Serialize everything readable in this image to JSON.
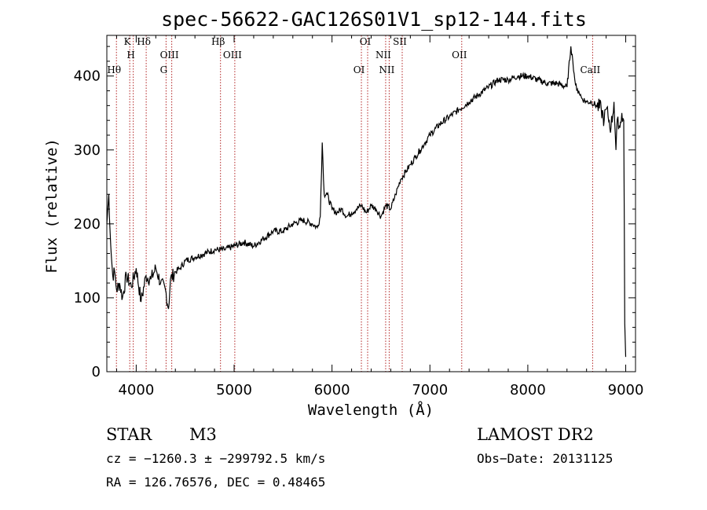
{
  "chart_data": {
    "type": "line",
    "title": "spec-56622-GAC126S01V1_sp12-144.fits",
    "xlabel": "Wavelength (Å)",
    "ylabel": "Flux (relative)",
    "xlim": [
      3700,
      9100
    ],
    "ylim": [
      0,
      455
    ],
    "xticks": [
      4000,
      5000,
      6000,
      7000,
      8000,
      9000
    ],
    "yticks": [
      0,
      100,
      200,
      300,
      400
    ],
    "grid": false,
    "series": [
      {
        "x": [
          3700,
          3720,
          3740,
          3760,
          3780,
          3800,
          3830,
          3860,
          3900,
          3950,
          4000,
          4050,
          4100,
          4150,
          4200,
          4250,
          4300,
          4330,
          4350,
          4400,
          4450,
          4500,
          4600,
          4700,
          4800,
          4900,
          5000,
          5100,
          5200,
          5300,
          5400,
          5500,
          5600,
          5700,
          5800,
          5850,
          5880,
          5900,
          5920,
          5950,
          6000,
          6050,
          6100,
          6150,
          6200,
          6250,
          6300,
          6350,
          6400,
          6450,
          6500,
          6550,
          6600,
          6650,
          6700,
          6750,
          6800,
          6850,
          6900,
          6950,
          7000,
          7100,
          7200,
          7300,
          7400,
          7500,
          7600,
          7700,
          7800,
          7900,
          8000,
          8100,
          8200,
          8300,
          8400,
          8440,
          8460,
          8480,
          8500,
          8520,
          8550,
          8600,
          8650,
          8700,
          8750,
          8780,
          8800,
          8820,
          8850,
          8880,
          8900,
          8920,
          8940,
          8960,
          8980,
          8990,
          9000
        ],
        "values": [
          200,
          240,
          170,
          130,
          135,
          110,
          120,
          100,
          130,
          115,
          140,
          95,
          130,
          125,
          140,
          120,
          110,
          85,
          125,
          135,
          140,
          150,
          155,
          160,
          165,
          165,
          170,
          175,
          170,
          180,
          190,
          190,
          200,
          205,
          200,
          195,
          210,
          310,
          240,
          240,
          220,
          215,
          220,
          210,
          215,
          220,
          225,
          215,
          225,
          220,
          210,
          225,
          220,
          240,
          260,
          270,
          280,
          290,
          300,
          310,
          320,
          335,
          345,
          355,
          365,
          375,
          385,
          395,
          395,
          400,
          400,
          395,
          390,
          390,
          385,
          440,
          420,
          395,
          380,
          380,
          370,
          365,
          365,
          360,
          355,
          340,
          355,
          345,
          330,
          365,
          300,
          345,
          330,
          350,
          340,
          65,
          20
        ]
      }
    ],
    "spectral_lines": [
      {
        "label": "K",
        "x": 3934
      },
      {
        "label": "H",
        "x": 3970
      },
      {
        "label": "Hθ",
        "x": 3798
      },
      {
        "label": "Hδ",
        "x": 4102
      },
      {
        "label": "OIII",
        "x": 4363
      },
      {
        "label": "G",
        "x": 4305
      },
      {
        "label": "Hβ",
        "x": 4861
      },
      {
        "label": "OIII",
        "x": 5007
      },
      {
        "label": "OI",
        "x": 6300
      },
      {
        "label": "OI",
        "x": 6364
      },
      {
        "label": "NII",
        "x": 6548
      },
      {
        "label": "NII",
        "x": 6584
      },
      {
        "label": "SII",
        "x": 6717
      },
      {
        "label": "OII",
        "x": 7325
      },
      {
        "label": "CaII",
        "x": 8662
      }
    ],
    "line_color": "#000000",
    "marker_color": "#b22222"
  },
  "info": {
    "object_class": "STAR",
    "subclass": "M3",
    "survey": "LAMOST DR2",
    "redshift": "cz = −1260.3 ± −299792.5 km/s",
    "obs_date": "Obs−Date: 20131125",
    "coords": "RA = 126.76576, DEC =    0.48465"
  }
}
